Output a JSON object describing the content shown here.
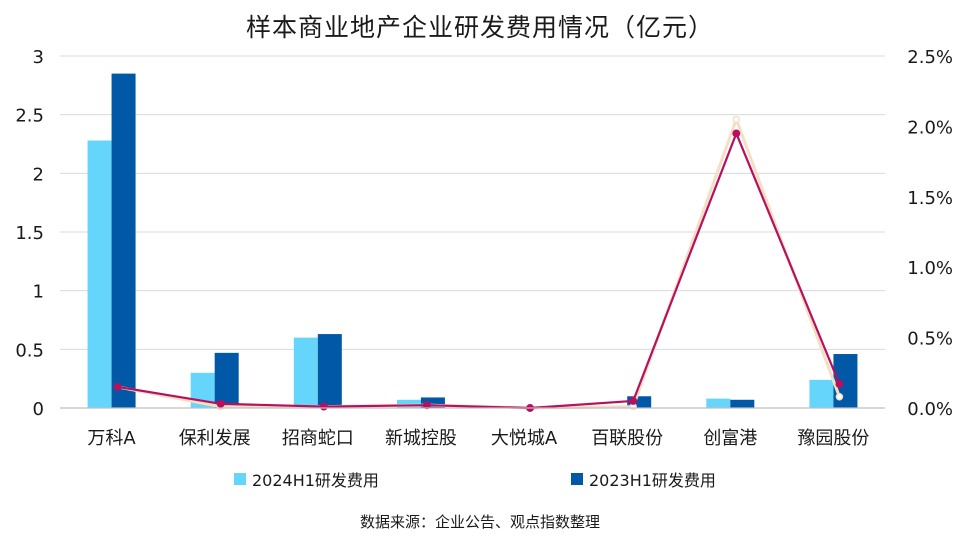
{
  "title": "样本商业地产企业研发费用情况（亿元）",
  "source": "数据来源：企业公告、观点指数整理",
  "colors": {
    "series_2024": "#66d5fb",
    "series_2023": "#0058a6",
    "line_main": "#b80f5e",
    "line_light": "#f5dfc4",
    "axis": "#bfbfbf"
  },
  "chart_data": {
    "type": "bar",
    "title": "样本商业地产企业研发费用情况（亿元）",
    "categories": [
      "万科A",
      "保利发展",
      "招商蛇口",
      "新城控股",
      "大悦城A",
      "百联股份",
      "创富港",
      "豫园股份"
    ],
    "series": [
      {
        "name": "2024H1研发费用",
        "axis": "left",
        "values": [
          2.28,
          0.3,
          0.6,
          0.07,
          0.0,
          0.02,
          0.08,
          0.24
        ]
      },
      {
        "name": "2023H1研发费用",
        "axis": "left",
        "values": [
          2.85,
          0.47,
          0.63,
          0.09,
          0.0,
          0.1,
          0.07,
          0.46
        ]
      }
    ],
    "line_series": [
      {
        "name": "",
        "type": "line",
        "axis": "right",
        "values": [
          0.15,
          0.03,
          0.01,
          0.02,
          0.0,
          0.05,
          1.95,
          0.17
        ]
      },
      {
        "name": "",
        "type": "line",
        "axis": "right",
        "values": [
          0.15,
          0.01,
          0.01,
          0.02,
          0.0,
          0.01,
          2.05,
          0.08
        ]
      }
    ],
    "left_ticks": [
      "0",
      "0.5",
      "1",
      "1.5",
      "2",
      "2.5",
      "3"
    ],
    "right_ticks": [
      "0.0%",
      "0.5%",
      "1.0%",
      "1.5%",
      "2.0%",
      "2.5%"
    ],
    "ylim": [
      0,
      3
    ],
    "y2lim": [
      0,
      2.5
    ],
    "legend": [
      "2024H1研发费用",
      "2023H1研发费用"
    ],
    "legend_position": "bottom"
  }
}
